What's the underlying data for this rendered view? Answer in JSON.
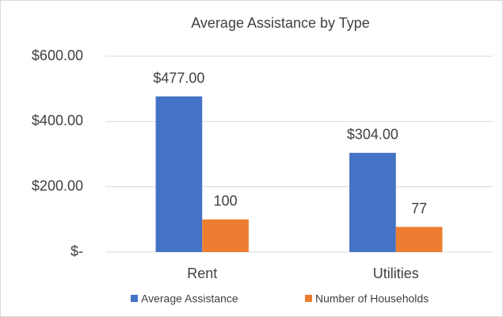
{
  "chart_data": {
    "type": "bar",
    "title": "Average Assistance by Type",
    "categories": [
      "Rent",
      "Utilities"
    ],
    "series": [
      {
        "name": "Average Assistance",
        "color": "#4472c4",
        "values": [
          477,
          304
        ],
        "value_labels": [
          "$477.00",
          "$304.00"
        ]
      },
      {
        "name": "Number of Households",
        "color": "#ed7d31",
        "values": [
          100,
          77
        ]
      }
    ],
    "ylim": [
      0,
      600
    ],
    "yticks": [
      {
        "value": 0,
        "label": "$-"
      },
      {
        "value": 200,
        "label": "$200.00"
      },
      {
        "value": 400,
        "label": "$400.00"
      },
      {
        "value": 600,
        "label": "$600.00"
      }
    ],
    "grid": true,
    "legend": "bottom"
  }
}
